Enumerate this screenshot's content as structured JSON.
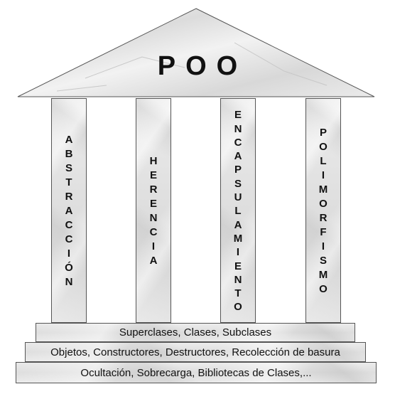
{
  "roof": {
    "title": "POO"
  },
  "pillars": [
    {
      "label": "ABSTRACCIÓN"
    },
    {
      "label": "HERENCIA"
    },
    {
      "label": "ENCAPSULAMIENTO"
    },
    {
      "label": "POLIMORFISMO"
    }
  ],
  "steps": [
    {
      "text": "Superclases, Clases, Subclases"
    },
    {
      "text": "Objetos, Constructores, Destructores, Recolección de basura"
    },
    {
      "text": "Ocultación, Sobrecarga, Bibliotecas de Clases,..."
    }
  ]
}
